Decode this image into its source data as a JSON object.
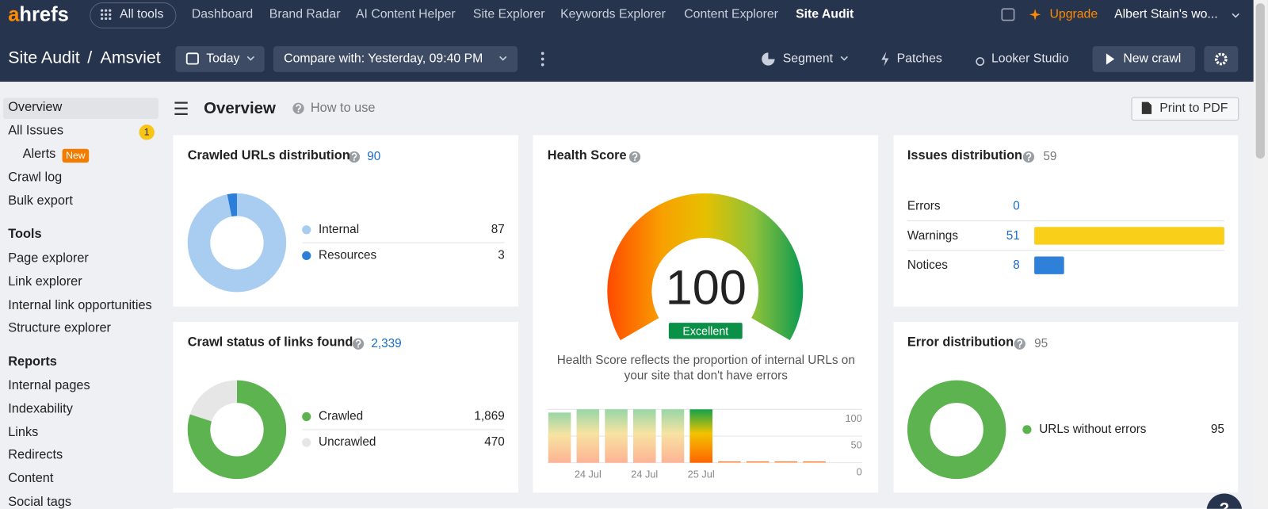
{
  "top_nav": {
    "logo": {
      "accent": "a",
      "rest": "hrefs"
    },
    "all_tools": "All tools",
    "links": [
      "Dashboard",
      "Brand Radar",
      "AI Content Helper",
      "Site Explorer",
      "Keywords Explorer",
      "Content Explorer",
      "Site Audit"
    ],
    "upgrade": "Upgrade",
    "account": "Albert Stain's wo..."
  },
  "toolbar": {
    "section": "Site Audit",
    "separator": "/",
    "project": "Amsviet",
    "date": "Today",
    "compare": "Compare with: Yesterday, 09:40 PM",
    "segment": "Segment",
    "patches": "Patches",
    "looker_studio": "Looker Studio",
    "new_crawl": "New crawl"
  },
  "sidebar": {
    "items": [
      "Overview",
      "All Issues",
      "Alerts",
      "Crawl log",
      "Bulk export"
    ],
    "issues_badge": 1,
    "alerts_tag": "New",
    "tools_heading": "Tools",
    "tools": [
      "Page explorer",
      "Link explorer",
      "Internal link opportunities",
      "Structure explorer"
    ],
    "reports_heading": "Reports",
    "reports": [
      "Internal pages",
      "Indexability",
      "Links",
      "Redirects",
      "Content",
      "Social tags"
    ]
  },
  "header": {
    "title": "Overview",
    "how_to_use": "How to use",
    "print": "Print to PDF"
  },
  "crawled_urls": {
    "title": "Crawled URLs distribution",
    "total": 90,
    "segments": [
      {
        "name": "Internal",
        "value": 87,
        "color": "#a9cdf0"
      },
      {
        "name": "Resources",
        "value": 3,
        "color": "#2b7fd8"
      }
    ]
  },
  "crawl_status": {
    "title": "Crawl status of links found",
    "total": {
      "value": 2339,
      "label": "2,339"
    },
    "segments": [
      {
        "name": "Crawled",
        "value": 1869,
        "label": "1,869",
        "color": "#5cb350"
      },
      {
        "name": "Uncrawled",
        "value": 470,
        "color": "#e6e6e6"
      }
    ]
  },
  "health_score": {
    "title": "Health Score",
    "score": 100,
    "rating": "Excellent",
    "description": "Health Score reflects the proportion of internal URLs on your site that don't have errors",
    "history": {
      "type": "bar",
      "categories": [
        null,
        "24 Jul",
        null,
        "24 Jul",
        null,
        "25 Jul",
        null,
        null,
        null,
        null
      ],
      "values": [
        94,
        100,
        100,
        100,
        100,
        100,
        null,
        null,
        null,
        null
      ],
      "ylim": [
        0,
        100
      ],
      "yticks": [
        0,
        50,
        100
      ],
      "grid": true
    }
  },
  "issues_distribution": {
    "title": "Issues distribution",
    "total": 59,
    "rows": [
      {
        "name": "Errors",
        "value": 0
      },
      {
        "name": "Warnings",
        "value": 51,
        "color": "#f9cf1a"
      },
      {
        "name": "Notices",
        "value": 8,
        "color": "#2f80d9"
      }
    ]
  },
  "error_distribution": {
    "title": "Error distribution",
    "total": 95,
    "segments": [
      {
        "name": "URLs without errors",
        "value": 95,
        "color": "#5cb350"
      }
    ]
  },
  "help_button": "?"
}
